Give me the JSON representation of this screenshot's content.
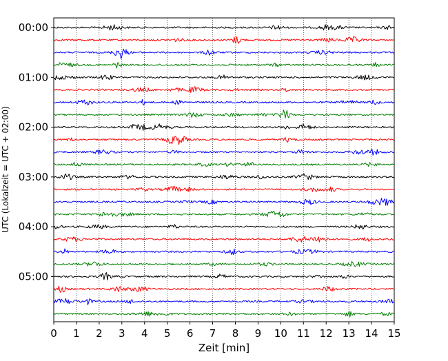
{
  "chart_data": {
    "type": "line",
    "title": "",
    "xlabel": "Zeit  [min]",
    "ylabel": "UTC (Lokalzeit = UTC + 02:00)",
    "xlim": [
      0,
      15
    ],
    "x_ticks": [
      0,
      1,
      2,
      3,
      4,
      5,
      6,
      7,
      8,
      9,
      10,
      11,
      12,
      13,
      14,
      15
    ],
    "y_tick_labels": [
      "00:00",
      "01:00",
      "02:00",
      "03:00",
      "04:00",
      "05:00"
    ],
    "trace_minutes": 15,
    "trace_colors": [
      "#000000",
      "#ff0000",
      "#0000ff",
      "#008000"
    ],
    "traces": [
      {
        "start": "00:00",
        "color": "#000000"
      },
      {
        "start": "00:15",
        "color": "#ff0000"
      },
      {
        "start": "00:30",
        "color": "#0000ff"
      },
      {
        "start": "00:45",
        "color": "#008000"
      },
      {
        "start": "01:00",
        "color": "#000000"
      },
      {
        "start": "01:15",
        "color": "#ff0000"
      },
      {
        "start": "01:30",
        "color": "#0000ff"
      },
      {
        "start": "01:45",
        "color": "#008000"
      },
      {
        "start": "02:00",
        "color": "#000000"
      },
      {
        "start": "02:15",
        "color": "#ff0000"
      },
      {
        "start": "02:30",
        "color": "#0000ff"
      },
      {
        "start": "02:45",
        "color": "#008000"
      },
      {
        "start": "03:00",
        "color": "#000000"
      },
      {
        "start": "03:15",
        "color": "#ff0000"
      },
      {
        "start": "03:30",
        "color": "#0000ff"
      },
      {
        "start": "03:45",
        "color": "#008000"
      },
      {
        "start": "04:00",
        "color": "#000000"
      },
      {
        "start": "04:15",
        "color": "#ff0000"
      },
      {
        "start": "04:30",
        "color": "#0000ff"
      },
      {
        "start": "04:45",
        "color": "#008000"
      },
      {
        "start": "05:00",
        "color": "#000000"
      },
      {
        "start": "05:15",
        "color": "#ff0000"
      },
      {
        "start": "05:30",
        "color": "#0000ff"
      },
      {
        "start": "05:45",
        "color": "#008000"
      }
    ],
    "grid": {
      "x": true,
      "y": false,
      "style": "dotted"
    },
    "legend": "none"
  }
}
